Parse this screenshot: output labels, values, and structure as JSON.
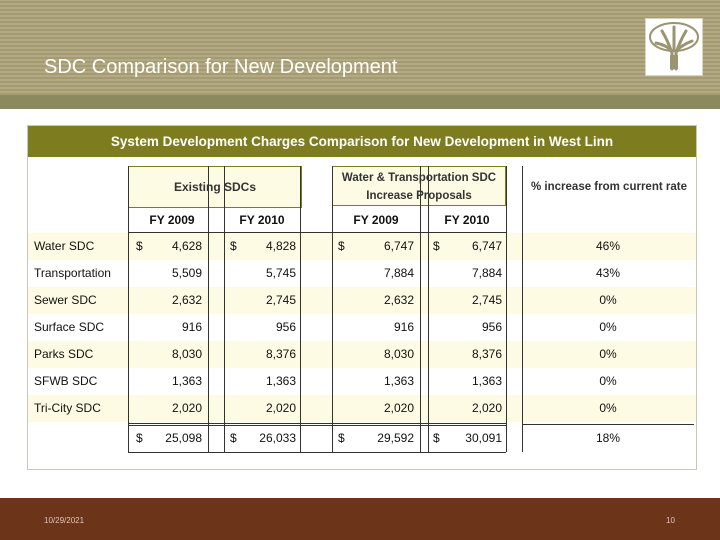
{
  "slide": {
    "title": "SDC Comparison for New Development",
    "footer_date": "10/29/2021",
    "page_number": "10"
  },
  "table": {
    "title": "System Development Charges Comparison for New Development in West Linn",
    "group_existing": "Existing SDCs",
    "group_proposal_line1": "Water & Transportation SDC",
    "group_proposal_line2": "Increase Proposals",
    "group_pct": "% increase from current rate",
    "fy_labels": [
      "FY 2009",
      "FY 2010",
      "FY 2009",
      "FY 2010"
    ],
    "rows": [
      {
        "label": "Water SDC",
        "dollar": "$",
        "e2009": "4,628",
        "e2010": "4,828",
        "p2009": "6,747",
        "p2010": "6,747",
        "pct": "46%"
      },
      {
        "label": "Transportation",
        "dollar": "",
        "e2009": "5,509",
        "e2010": "5,745",
        "p2009": "7,884",
        "p2010": "7,884",
        "pct": "43%"
      },
      {
        "label": "Sewer SDC",
        "dollar": "",
        "e2009": "2,632",
        "e2010": "2,745",
        "p2009": "2,632",
        "p2010": "2,745",
        "pct": "0%"
      },
      {
        "label": "Surface SDC",
        "dollar": "",
        "e2009": "916",
        "e2010": "956",
        "p2009": "916",
        "p2010": "956",
        "pct": "0%"
      },
      {
        "label": "Parks SDC",
        "dollar": "",
        "e2009": "8,030",
        "e2010": "8,376",
        "p2009": "8,030",
        "p2010": "8,376",
        "pct": "0%"
      },
      {
        "label": "SFWB SDC",
        "dollar": "",
        "e2009": "1,363",
        "e2010": "1,363",
        "p2009": "1,363",
        "p2010": "1,363",
        "pct": "0%"
      },
      {
        "label": "Tri-City SDC",
        "dollar": "",
        "e2009": "2,020",
        "e2010": "2,020",
        "p2009": "2,020",
        "p2010": "2,020",
        "pct": "0%"
      }
    ],
    "total": {
      "dollar": "$",
      "e2009": "25,098",
      "e2010": "26,033",
      "p2009": "29,592",
      "p2010": "30,091",
      "pct": "18%"
    }
  },
  "colors": {
    "header_olive": "#7d7d1f",
    "row_band": "#fdfbe3",
    "footer_brown": "#6c3419"
  }
}
